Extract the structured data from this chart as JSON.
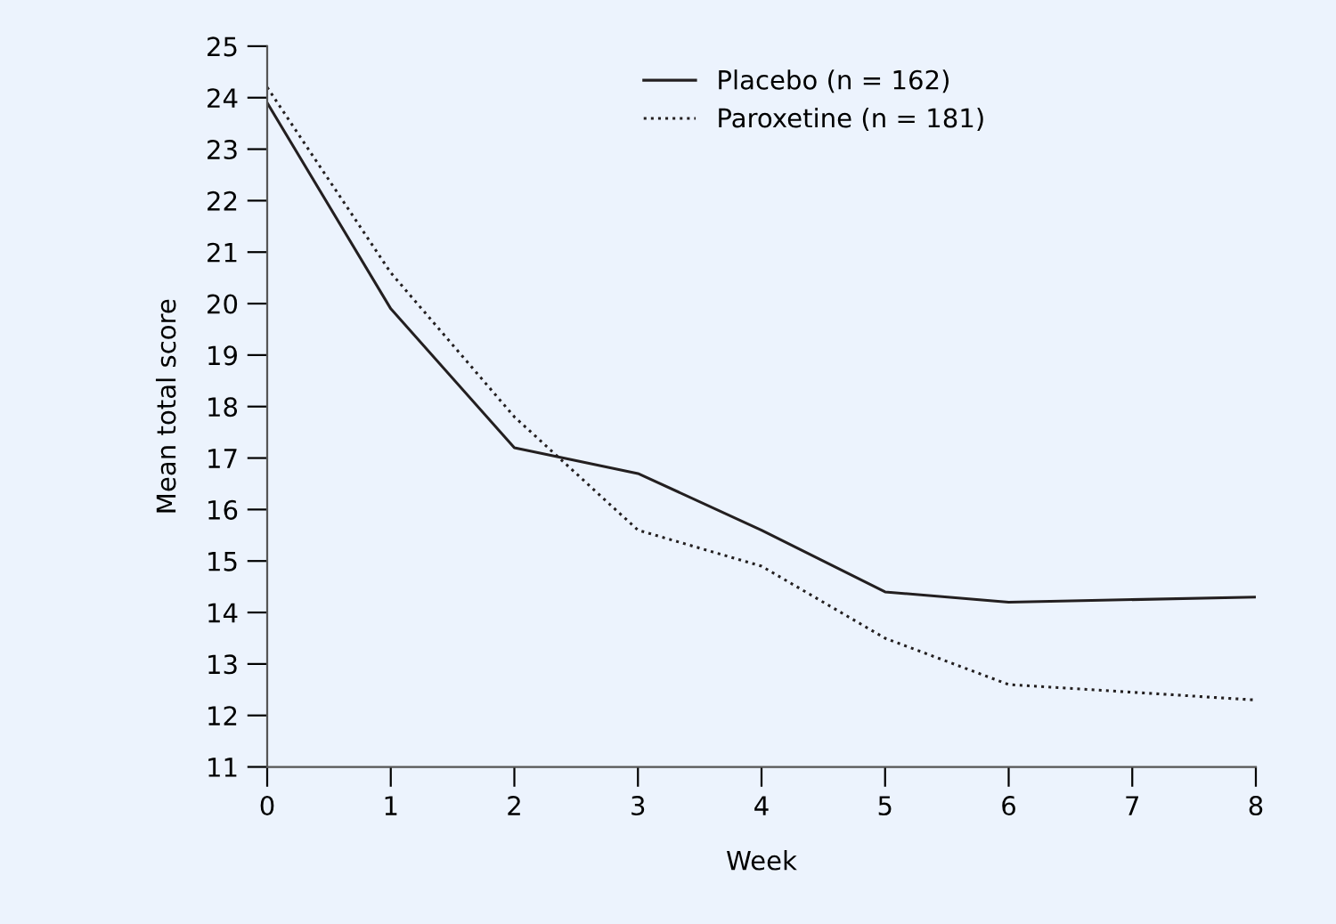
{
  "chart_data": {
    "type": "line",
    "xlabel": "Week",
    "ylabel": "Mean total score",
    "xlim": [
      0,
      8
    ],
    "xticks": [
      0,
      1,
      2,
      3,
      4,
      5,
      6,
      7,
      8
    ],
    "ylim": [
      11,
      25
    ],
    "yticks": [
      11,
      12,
      13,
      14,
      15,
      16,
      17,
      18,
      19,
      20,
      21,
      22,
      23,
      24,
      25
    ],
    "grid": false,
    "legend": "top right",
    "marker": "none",
    "series": [
      {
        "name": "Placebo (n = 162)",
        "color": "#231f20",
        "line_style": "solid",
        "x": [
          0,
          1,
          2,
          3,
          4,
          5,
          6,
          8
        ],
        "values": [
          23.9,
          19.9,
          17.2,
          16.7,
          15.6,
          14.4,
          14.2,
          14.3
        ]
      },
      {
        "name": "Paroxetine (n = 181)",
        "color": "#231f20",
        "line_style": "dotted",
        "x": [
          0,
          1,
          2,
          3,
          4,
          5,
          6,
          8
        ],
        "values": [
          24.2,
          20.6,
          17.8,
          15.6,
          14.9,
          13.5,
          12.6,
          12.3
        ]
      }
    ]
  }
}
